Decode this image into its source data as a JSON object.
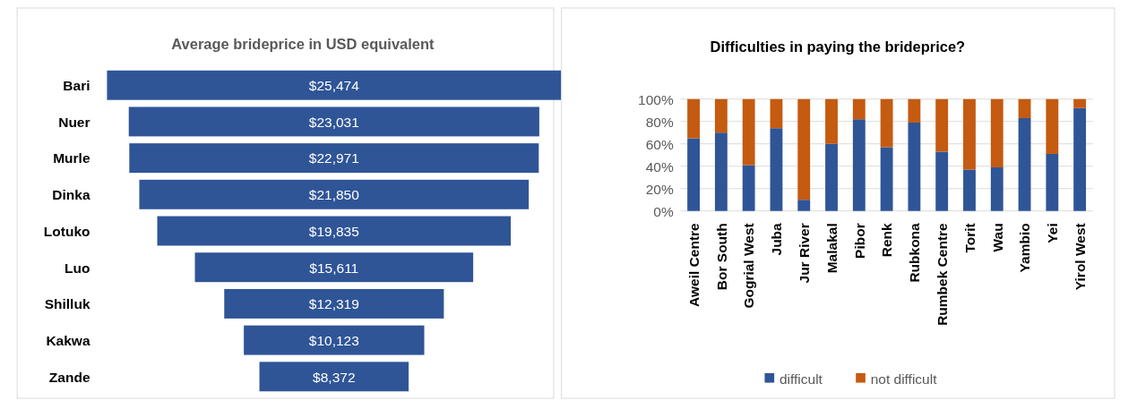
{
  "chart_data": [
    {
      "type": "other",
      "title": "Average brideprice in USD equivalent",
      "categories": [
        "Bari",
        "Nuer",
        "Murle",
        "Dinka",
        "Lotuko",
        "Luo",
        "Shilluk",
        "Kakwa",
        "Zande"
      ],
      "values": [
        25474,
        23031,
        22971,
        21850,
        19835,
        15611,
        12319,
        10123,
        8372
      ],
      "value_labels": [
        "$25,474",
        "$23,031",
        "$22,971",
        "$21,850",
        "$19,835",
        "$15,611",
        "$12,319",
        "$10,123",
        "$8,372"
      ],
      "color": "#2f5597"
    },
    {
      "type": "bar",
      "stacked": true,
      "title": "Difficulties in paying the brideprice?",
      "categories": [
        "Aweil Centre",
        "Bor South",
        "Gogrial West",
        "Juba",
        "Jur River",
        "Malakal",
        "Pibor",
        "Renk",
        "Rubkona",
        "Rumbek Centre",
        "Torit",
        "Wau",
        "Yambio",
        "Yei",
        "Yirol West"
      ],
      "series": [
        {
          "name": "difficult",
          "color": "#2f5597",
          "values": [
            65,
            70,
            41,
            74,
            10,
            60,
            82,
            57,
            79,
            53,
            37,
            39,
            83,
            51,
            92
          ]
        },
        {
          "name": "not difficult",
          "color": "#c55a11",
          "values": [
            35,
            30,
            59,
            26,
            90,
            40,
            18,
            43,
            21,
            47,
            63,
            61,
            17,
            49,
            8
          ]
        }
      ],
      "ylim": [
        0,
        100
      ],
      "yticks": [
        {
          "value": 0,
          "label": "0%"
        },
        {
          "value": 20,
          "label": "20%"
        },
        {
          "value": 40,
          "label": "40%"
        },
        {
          "value": 60,
          "label": "60%"
        },
        {
          "value": 80,
          "label": "80%"
        },
        {
          "value": 100,
          "label": "100%"
        }
      ],
      "grid": "y",
      "legend": "bottom"
    }
  ]
}
